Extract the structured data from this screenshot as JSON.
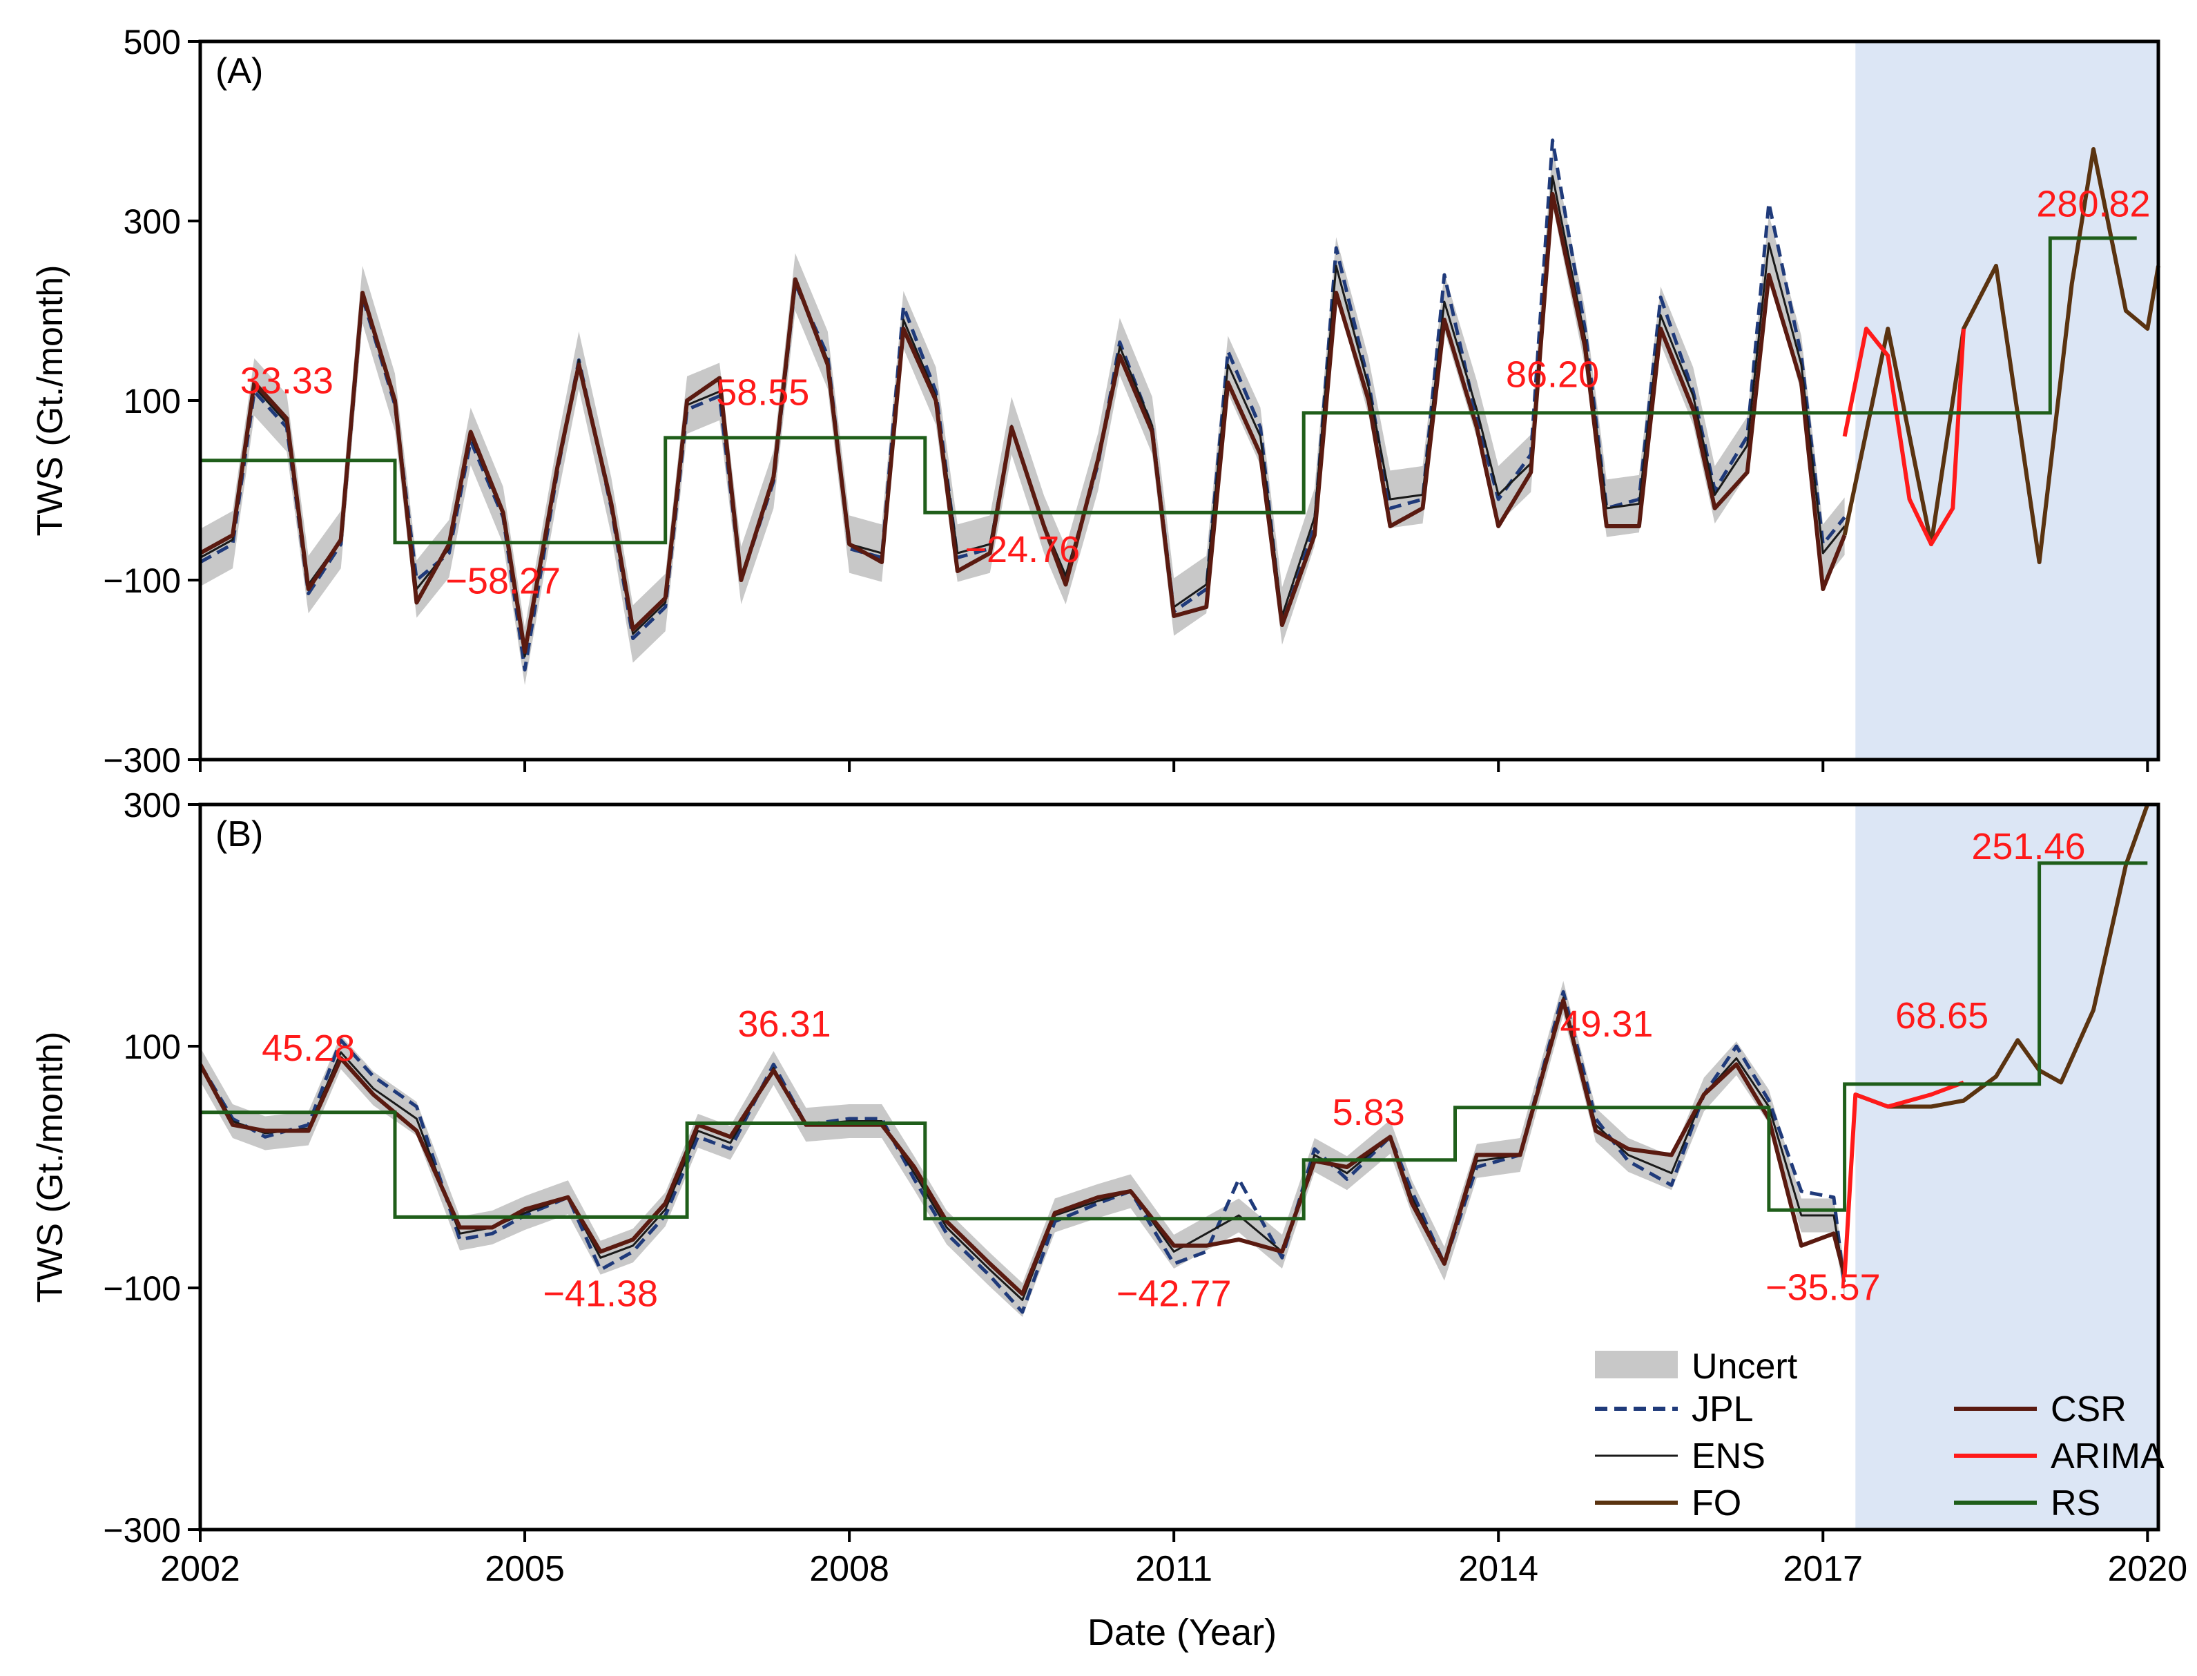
{
  "figure": {
    "xlabel": "Date (Year)",
    "colors": {
      "shade": "#dce6f5",
      "uncert": "#c8c8c8",
      "jpl": "#1f3a7a",
      "ens": "#1a1a1a",
      "csr": "#5a1a10",
      "fo": "#5a3310",
      "arima": "#ff1a1a",
      "rs": "#1f5e1a",
      "annot": "#ff1a1a"
    }
  },
  "chart_data": [
    {
      "type": "line",
      "panel_label": "(A)",
      "ylabel": "TWS (Gt./month)",
      "ylim": [
        -300,
        500
      ],
      "yticks": [
        "500",
        "300",
        "100",
        "−100",
        "−300"
      ],
      "ytick_values": [
        500,
        300,
        100,
        -100,
        -300
      ],
      "xlim": [
        2002,
        2020.1
      ],
      "xticks": [
        2002,
        2005,
        2008,
        2011,
        2014,
        2017,
        2020
      ],
      "shaded_region": [
        2017.3,
        2020.1
      ],
      "series": [
        {
          "name": "JPL",
          "x": [
            2002.0,
            2002.3,
            2002.5,
            2002.8,
            2003.0,
            2003.3,
            2003.5,
            2003.8,
            2004.0,
            2004.3,
            2004.5,
            2004.8,
            2005.0,
            2005.3,
            2005.5,
            2005.8,
            2006.0,
            2006.3,
            2006.5,
            2006.8,
            2007.0,
            2007.3,
            2007.5,
            2007.8,
            2008.0,
            2008.3,
            2008.5,
            2008.8,
            2009.0,
            2009.3,
            2009.5,
            2009.8,
            2010.0,
            2010.3,
            2010.5,
            2010.8,
            2011.0,
            2011.3,
            2011.5,
            2011.8,
            2012.0,
            2012.3,
            2012.5,
            2012.8,
            2013.0,
            2013.3,
            2013.5,
            2013.8,
            2014.0,
            2014.3,
            2014.5,
            2014.8,
            2015.0,
            2015.3,
            2015.5,
            2015.8,
            2016.0,
            2016.3,
            2016.5,
            2016.8,
            2017.0,
            2017.2
          ],
          "values": [
            -80,
            -60,
            110,
            70,
            -115,
            -60,
            215,
            95,
            -100,
            -70,
            55,
            -30,
            -200,
            20,
            145,
            -20,
            -165,
            -130,
            90,
            105,
            -100,
            10,
            230,
            150,
            -65,
            -75,
            205,
            110,
            -75,
            -65,
            70,
            -40,
            -100,
            30,
            165,
            70,
            -135,
            -110,
            155,
            70,
            -150,
            -40,
            270,
            120,
            -20,
            -10,
            240,
            80,
            -10,
            40,
            390,
            180,
            -20,
            -10,
            215,
            110,
            0,
            60,
            320,
            150,
            -60,
            -30
          ]
        },
        {
          "name": "ENS",
          "x": [
            2002.0,
            2002.3,
            2002.5,
            2002.8,
            2003.0,
            2003.3,
            2003.5,
            2003.8,
            2004.0,
            2004.3,
            2004.5,
            2004.8,
            2005.0,
            2005.3,
            2005.5,
            2005.8,
            2006.0,
            2006.3,
            2006.5,
            2006.8,
            2007.0,
            2007.3,
            2007.5,
            2007.8,
            2008.0,
            2008.3,
            2008.5,
            2008.8,
            2009.0,
            2009.3,
            2009.5,
            2009.8,
            2010.0,
            2010.3,
            2010.5,
            2010.8,
            2011.0,
            2011.3,
            2011.5,
            2011.8,
            2012.0,
            2012.3,
            2012.5,
            2012.8,
            2013.0,
            2013.3,
            2013.5,
            2013.8,
            2014.0,
            2014.3,
            2014.5,
            2014.8,
            2015.0,
            2015.3,
            2015.5,
            2015.8,
            2016.0,
            2016.3,
            2016.5,
            2016.8,
            2017.0,
            2017.2
          ],
          "values": [
            -75,
            -55,
            115,
            75,
            -105,
            -55,
            218,
            98,
            -110,
            -65,
            60,
            -28,
            -185,
            22,
            145,
            -18,
            -160,
            -125,
            95,
            110,
            -95,
            12,
            232,
            145,
            -60,
            -70,
            190,
            105,
            -70,
            -60,
            72,
            -38,
            -95,
            32,
            160,
            72,
            -130,
            -105,
            140,
            60,
            -140,
            -30,
            250,
            115,
            -10,
            -5,
            210,
            90,
            -5,
            30,
            350,
            170,
            -20,
            -15,
            195,
            105,
            -5,
            50,
            275,
            140,
            -70,
            -40
          ]
        },
        {
          "name": "CSR",
          "x": [
            2002.0,
            2002.3,
            2002.5,
            2002.8,
            2003.0,
            2003.3,
            2003.5,
            2003.8,
            2004.0,
            2004.3,
            2004.5,
            2004.8,
            2005.0,
            2005.3,
            2005.5,
            2005.8,
            2006.0,
            2006.3,
            2006.5,
            2006.8,
            2007.0,
            2007.3,
            2007.5,
            2007.8,
            2008.0,
            2008.3,
            2008.5,
            2008.8,
            2009.0,
            2009.3,
            2009.5,
            2009.8,
            2010.0,
            2010.3,
            2010.5,
            2010.8,
            2011.0,
            2011.3,
            2011.5,
            2011.8,
            2012.0,
            2012.3,
            2012.5,
            2012.8,
            2013.0,
            2013.3,
            2013.5,
            2013.8,
            2014.0,
            2014.3,
            2014.5,
            2014.8,
            2015.0,
            2015.3,
            2015.5,
            2015.8,
            2016.0,
            2016.3,
            2016.5,
            2016.8,
            2017.0,
            2017.2
          ],
          "values": [
            -70,
            -50,
            120,
            80,
            -110,
            -55,
            220,
            100,
            -125,
            -60,
            65,
            -25,
            -180,
            25,
            140,
            -15,
            -155,
            -120,
            100,
            125,
            -100,
            15,
            235,
            140,
            -60,
            -80,
            180,
            100,
            -90,
            -70,
            70,
            -40,
            -105,
            35,
            150,
            65,
            -140,
            -130,
            120,
            40,
            -150,
            -50,
            220,
            100,
            -40,
            -20,
            190,
            70,
            -40,
            20,
            330,
            160,
            -40,
            -40,
            180,
            90,
            -20,
            20,
            240,
            120,
            -110,
            -50
          ]
        },
        {
          "name": "FO",
          "x": [
            2017.2,
            2017.6,
            2018.0,
            2018.3,
            2018.6,
            2019.0,
            2019.3,
            2019.5,
            2019.8,
            2020.0,
            2020.1
          ],
          "values": [
            -50,
            180,
            -60,
            180,
            250,
            -80,
            230,
            380,
            200,
            180,
            250
          ]
        },
        {
          "name": "ARIMA",
          "x": [
            2017.2,
            2017.4,
            2017.6,
            2017.8,
            2018.0,
            2018.2,
            2018.3
          ],
          "values": [
            60,
            180,
            150,
            -10,
            -60,
            -20,
            180
          ]
        },
        {
          "name": "RS",
          "type": "step",
          "segments": [
            [
              2002.0,
              2003.8,
              33.33
            ],
            [
              2003.8,
              2006.3,
              -58.27
            ],
            [
              2006.3,
              2008.7,
              58.55
            ],
            [
              2008.7,
              2012.2,
              -24.76
            ],
            [
              2012.2,
              2019.1,
              86.2
            ],
            [
              2019.1,
              2019.9,
              280.82
            ]
          ]
        }
      ],
      "annotations": [
        {
          "text": "33.33",
          "x": 2002.8,
          "y": 108
        },
        {
          "text": "−58.27",
          "x": 2004.8,
          "y": -115
        },
        {
          "text": "58.55",
          "x": 2007.2,
          "y": 95
        },
        {
          "text": "−24.76",
          "x": 2009.6,
          "y": -80
        },
        {
          "text": "86.20",
          "x": 2014.5,
          "y": 115
        },
        {
          "text": "280.82",
          "x": 2019.5,
          "y": 305
        }
      ]
    },
    {
      "type": "line",
      "panel_label": "(B)",
      "ylabel": "TWS (Gt./month)",
      "ylim": [
        -300,
        300
      ],
      "yticks": [
        "300",
        "100",
        "−100",
        "−300"
      ],
      "ytick_values": [
        300,
        100,
        -100,
        -300
      ],
      "xlim": [
        2002,
        2020.1
      ],
      "xticks": [
        2002,
        2005,
        2008,
        2011,
        2014,
        2017,
        2020
      ],
      "xticklabels": [
        "2002",
        "2005",
        "2008",
        "2011",
        "2014",
        "2017",
        "2020"
      ],
      "shaded_region": [
        2017.3,
        2020.1
      ],
      "series": [
        {
          "name": "JPL",
          "x": [
            2002.0,
            2002.3,
            2002.6,
            2003.0,
            2003.3,
            2003.6,
            2004.0,
            2004.4,
            2004.7,
            2005.0,
            2005.4,
            2005.7,
            2006.0,
            2006.3,
            2006.6,
            2006.9,
            2007.3,
            2007.6,
            2008.0,
            2008.3,
            2008.6,
            2008.9,
            2009.3,
            2009.6,
            2009.9,
            2010.3,
            2010.6,
            2011.0,
            2011.3,
            2011.6,
            2012.0,
            2012.3,
            2012.6,
            2013.0,
            2013.2,
            2013.5,
            2013.8,
            2014.2,
            2014.6,
            2014.9,
            2015.2,
            2015.6,
            2015.9,
            2016.2,
            2016.5,
            2016.8,
            2017.1,
            2017.2
          ],
          "values": [
            85,
            40,
            25,
            35,
            105,
            75,
            50,
            -60,
            -55,
            -40,
            -25,
            -85,
            -70,
            -40,
            25,
            15,
            85,
            35,
            40,
            40,
            -10,
            -55,
            -90,
            -120,
            -45,
            -30,
            -20,
            -80,
            -70,
            -10,
            -75,
            15,
            -10,
            25,
            -20,
            -80,
            0,
            10,
            145,
            40,
            5,
            -15,
            60,
            100,
            55,
            -20,
            -25,
            -100
          ]
        },
        {
          "name": "ENS",
          "x": [
            2002.0,
            2002.3,
            2002.6,
            2003.0,
            2003.3,
            2003.6,
            2004.0,
            2004.4,
            2004.7,
            2005.0,
            2005.4,
            2005.7,
            2006.0,
            2006.3,
            2006.6,
            2006.9,
            2007.3,
            2007.6,
            2008.0,
            2008.3,
            2008.6,
            2008.9,
            2009.3,
            2009.6,
            2009.9,
            2010.3,
            2010.6,
            2011.0,
            2011.3,
            2011.6,
            2012.0,
            2012.3,
            2012.6,
            2013.0,
            2013.2,
            2013.5,
            2013.8,
            2014.2,
            2014.6,
            2014.9,
            2015.2,
            2015.6,
            2015.9,
            2016.2,
            2016.5,
            2016.8,
            2017.1,
            2017.2
          ],
          "values": [
            85,
            38,
            28,
            32,
            95,
            65,
            40,
            -55,
            -50,
            -38,
            -25,
            -75,
            -65,
            -35,
            30,
            20,
            82,
            35,
            38,
            38,
            -5,
            -50,
            -85,
            -110,
            -40,
            -28,
            -20,
            -70,
            -55,
            -40,
            -70,
            10,
            -5,
            25,
            -25,
            -80,
            5,
            10,
            140,
            35,
            10,
            -5,
            60,
            90,
            50,
            -40,
            -40,
            -95
          ]
        },
        {
          "name": "CSR",
          "x": [
            2002.0,
            2002.3,
            2002.6,
            2003.0,
            2003.3,
            2003.6,
            2004.0,
            2004.4,
            2004.7,
            2005.0,
            2005.4,
            2005.7,
            2006.0,
            2006.3,
            2006.6,
            2006.9,
            2007.3,
            2007.6,
            2008.0,
            2008.3,
            2008.6,
            2008.9,
            2009.3,
            2009.6,
            2009.9,
            2010.3,
            2010.6,
            2011.0,
            2011.3,
            2011.6,
            2012.0,
            2012.3,
            2012.6,
            2013.0,
            2013.2,
            2013.5,
            2013.8,
            2014.2,
            2014.6,
            2014.9,
            2015.2,
            2015.6,
            2015.9,
            2016.2,
            2016.5,
            2016.8,
            2017.1,
            2017.2
          ],
          "values": [
            85,
            35,
            30,
            30,
            90,
            60,
            30,
            -50,
            -50,
            -35,
            -25,
            -70,
            -60,
            -30,
            35,
            25,
            80,
            35,
            35,
            35,
            0,
            -45,
            -80,
            -105,
            -38,
            -25,
            -20,
            -65,
            -65,
            -60,
            -70,
            5,
            0,
            25,
            -30,
            -80,
            10,
            10,
            138,
            30,
            15,
            10,
            60,
            85,
            40,
            -65,
            -55,
            -90
          ]
        },
        {
          "name": "FO",
          "x": [
            2017.3,
            2017.6,
            2018.0,
            2018.3,
            2018.6,
            2018.8,
            2019.0,
            2019.2,
            2019.5,
            2019.8,
            2020.0
          ],
          "values": [
            60,
            50,
            50,
            55,
            75,
            105,
            80,
            70,
            130,
            250,
            300
          ]
        },
        {
          "name": "ARIMA",
          "x": [
            2017.2,
            2017.3,
            2017.6,
            2018.0,
            2018.3
          ],
          "values": [
            -90,
            60,
            50,
            60,
            70
          ]
        },
        {
          "name": "RS",
          "type": "step",
          "segments": [
            [
              2002.0,
              2003.8,
              45.28
            ],
            [
              2003.8,
              2006.5,
              -41.38
            ],
            [
              2006.5,
              2008.7,
              36.31
            ],
            [
              2008.7,
              2012.2,
              -42.77
            ],
            [
              2012.2,
              2013.6,
              5.83
            ],
            [
              2013.6,
              2016.5,
              49.31
            ],
            [
              2016.5,
              2017.2,
              -35.57
            ],
            [
              2017.2,
              2019.0,
              68.65
            ],
            [
              2019.0,
              2020.0,
              251.46
            ]
          ]
        }
      ],
      "annotations": [
        {
          "text": "45.28",
          "x": 2003.0,
          "y": 88
        },
        {
          "text": "−41.38",
          "x": 2005.7,
          "y": -115
        },
        {
          "text": "36.31",
          "x": 2007.4,
          "y": 108
        },
        {
          "text": "−42.77",
          "x": 2011.0,
          "y": -115
        },
        {
          "text": "5.83",
          "x": 2012.8,
          "y": 35
        },
        {
          "text": "49.31",
          "x": 2015.0,
          "y": 108
        },
        {
          "text": "68.65",
          "x": 2018.1,
          "y": 115
        },
        {
          "text": "−35.57",
          "x": 2017.0,
          "y": -110
        },
        {
          "text": "251.46",
          "x": 2018.9,
          "y": 255
        }
      ]
    }
  ],
  "legend": {
    "placement": "bottom-right",
    "items": [
      {
        "label": "Uncert",
        "kind": "band",
        "color_key": "uncert"
      },
      {
        "label": "JPL",
        "kind": "dashed",
        "color_key": "jpl"
      },
      {
        "label": "CSR",
        "kind": "line",
        "color_key": "csr"
      },
      {
        "label": "ENS",
        "kind": "line-thin",
        "color_key": "ens"
      },
      {
        "label": "ARIMA",
        "kind": "line",
        "color_key": "arima"
      },
      {
        "label": "FO",
        "kind": "line",
        "color_key": "fo"
      },
      {
        "label": "RS",
        "kind": "line",
        "color_key": "rs"
      }
    ]
  }
}
